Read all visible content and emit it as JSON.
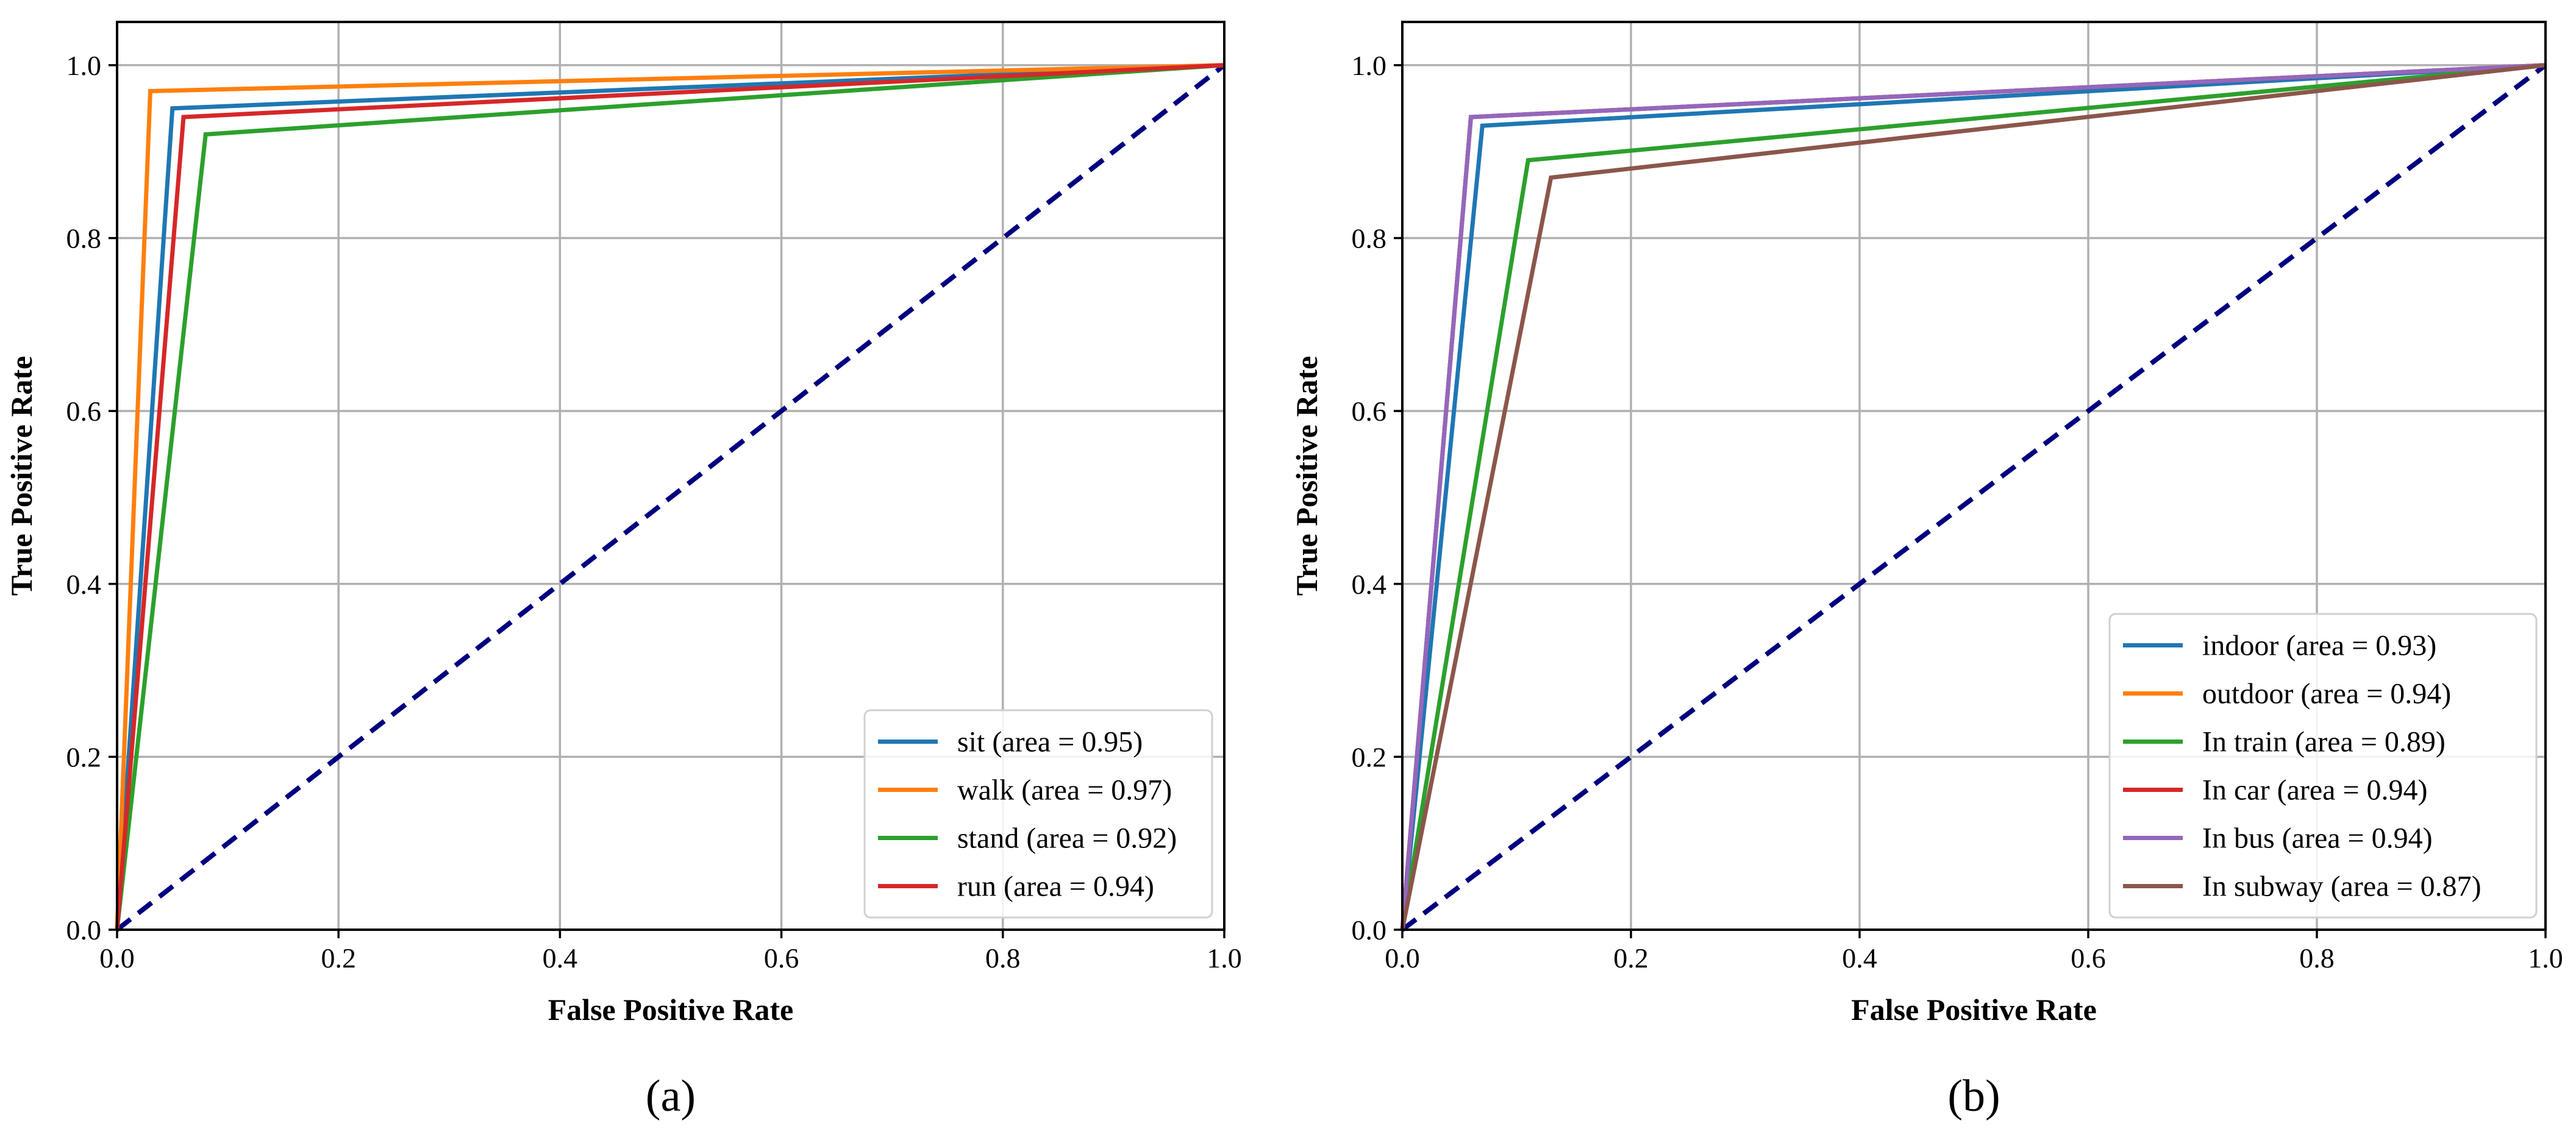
{
  "chart_data": [
    {
      "type": "line",
      "title": "",
      "panel_label": "(a)",
      "xlabel": "False Positive Rate",
      "ylabel": "True Positive Rate",
      "xlim": [
        0.0,
        1.0
      ],
      "ylim": [
        0.0,
        1.05
      ],
      "xticks": [
        0.0,
        0.2,
        0.4,
        0.6,
        0.8,
        1.0
      ],
      "yticks": [
        0.0,
        0.2,
        0.4,
        0.6,
        0.8,
        1.0
      ],
      "xtick_labels": [
        "0.0",
        "0.2",
        "0.4",
        "0.6",
        "0.8",
        "1.0"
      ],
      "ytick_labels": [
        "0.0",
        "0.2",
        "0.4",
        "0.6",
        "0.8",
        "1.0"
      ],
      "grid": true,
      "legend_position": "lower-right",
      "series": [
        {
          "name": "sit (area = 0.95)",
          "color": "#1f77b4",
          "x": [
            0,
            0.05,
            1
          ],
          "y": [
            0,
            0.95,
            1
          ]
        },
        {
          "name": "walk (area = 0.97)",
          "color": "#ff7f0e",
          "x": [
            0,
            0.03,
            1
          ],
          "y": [
            0,
            0.97,
            1
          ]
        },
        {
          "name": "stand (area = 0.92)",
          "color": "#2ca02c",
          "x": [
            0,
            0.08,
            1
          ],
          "y": [
            0,
            0.92,
            1
          ]
        },
        {
          "name": "run (area = 0.94)",
          "color": "#d62728",
          "x": [
            0,
            0.06,
            1
          ],
          "y": [
            0,
            0.94,
            1
          ]
        }
      ],
      "diagonal": {
        "color": "#000080",
        "style": "dashed",
        "x": [
          0,
          1
        ],
        "y": [
          0,
          1
        ]
      }
    },
    {
      "type": "line",
      "title": "",
      "panel_label": "(b)",
      "xlabel": "False Positive Rate",
      "ylabel": "True Positive Rate",
      "xlim": [
        0.0,
        1.0
      ],
      "ylim": [
        0.0,
        1.05
      ],
      "xticks": [
        0.0,
        0.2,
        0.4,
        0.6,
        0.8,
        1.0
      ],
      "yticks": [
        0.0,
        0.2,
        0.4,
        0.6,
        0.8,
        1.0
      ],
      "xtick_labels": [
        "0.0",
        "0.2",
        "0.4",
        "0.6",
        "0.8",
        "1.0"
      ],
      "ytick_labels": [
        "0.0",
        "0.2",
        "0.4",
        "0.6",
        "0.8",
        "1.0"
      ],
      "grid": true,
      "legend_position": "lower-right",
      "series": [
        {
          "name": "indoor (area = 0.93)",
          "color": "#1f77b4",
          "x": [
            0,
            0.07,
            1
          ],
          "y": [
            0,
            0.93,
            1
          ]
        },
        {
          "name": "outdoor (area = 0.94)",
          "color": "#ff7f0e",
          "x": [
            0,
            0.06,
            1
          ],
          "y": [
            0,
            0.94,
            1
          ]
        },
        {
          "name": "In train (area = 0.89)",
          "color": "#2ca02c",
          "x": [
            0,
            0.11,
            1
          ],
          "y": [
            0,
            0.89,
            1
          ]
        },
        {
          "name": "In car (area = 0.94)",
          "color": "#d62728",
          "x": [
            0,
            0.06,
            1
          ],
          "y": [
            0,
            0.94,
            1
          ]
        },
        {
          "name": "In bus (area = 0.94)",
          "color": "#9467bd",
          "x": [
            0,
            0.06,
            1
          ],
          "y": [
            0,
            0.94,
            1
          ]
        },
        {
          "name": "In subway (area = 0.87)",
          "color": "#8c564b",
          "x": [
            0,
            0.13,
            1
          ],
          "y": [
            0,
            0.87,
            1
          ]
        }
      ],
      "diagonal": {
        "color": "#000080",
        "style": "dashed",
        "x": [
          0,
          1
        ],
        "y": [
          0,
          1
        ]
      }
    }
  ]
}
